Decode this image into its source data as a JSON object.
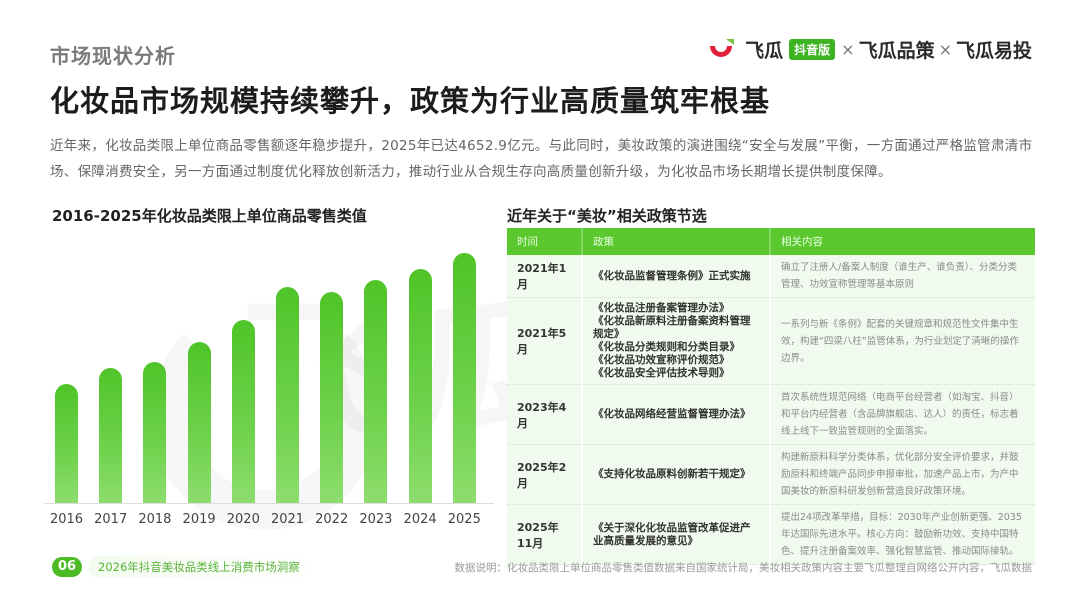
{
  "header": {
    "section_label": "市场现状分析",
    "title": "化妆品市场规模持续攀升，政策为行业高质量筑牢根基"
  },
  "brand": {
    "logo_icon": "feigua-logo-icon",
    "name1": "飞瓜",
    "badge": "抖音版",
    "separator": "×",
    "name2": "飞瓜品策",
    "name3": "飞瓜易投",
    "colors": {
      "logo_red": "#e0213a",
      "logo_green": "#7cc243",
      "badge_bg": "#3cb321"
    }
  },
  "intro": "近年来，化妆品类限上单位商品零售额逐年稳步提升，2025年已达4652.9亿元。与此同时，美妆政策的演进围绕“安全与发展”平衡，一方面通过严格监管肃清市场、保障消费安全，另一方面通过制度优化释放创新活力，推动行业从合规生存向高质量创新升级，为化妆品市场长期增长提供制度保障。",
  "chart_title": "2016-2025年化妆品类限上单位商品零售类值",
  "chart_data": {
    "type": "bar",
    "title": "2016-2025年化妆品类限上单位商品零售类值",
    "categories": [
      "2016",
      "2017",
      "2018",
      "2019",
      "2020",
      "2021",
      "2022",
      "2023",
      "2024",
      "2025"
    ],
    "values": [
      2222,
      2514,
      2619,
      2992,
      3400,
      4026,
      3936,
      4142,
      4357,
      4652.9
    ],
    "unit": "亿元",
    "xlabel": "",
    "ylabel": "",
    "ylim": [
      0,
      4700
    ],
    "grid": false,
    "legend": null,
    "bar_color": "#5ac82e"
  },
  "table": {
    "title": "近年关于“美妆”相关政策节选",
    "headers": [
      "时间",
      "政策",
      "相关内容"
    ],
    "rows": [
      {
        "date": "2021年1月",
        "policy": "《化妆品监督管理条例》正式实施",
        "content": "确立了注册人/备案人制度（谁生产、谁负责）、分类分类管理、功效宣称管理等基本原则"
      },
      {
        "date": "2021年5月",
        "policy": "《化妆品注册备案管理办法》\n《化妆品新原料注册备案资料管理规定》\n《化妆品分类规则和分类目录》\n《化妆品功效宣称评价规范》\n《化妆品安全评估技术导则》",
        "content": "一系列与新《条例》配套的关键规章和规范性文件集中生效，构建“四梁八柱”监管体系，为行业划定了清晰的操作边界。"
      },
      {
        "date": "2023年4月",
        "policy": "《化妆品网络经营监督管理办法》",
        "content": "首次系统性规范网络（电商平台经营者（如淘宝、抖音）和平台内经营者（含品牌旗舰店、达人）的责任，标志着线上线下一致监管规则的全面落实。"
      },
      {
        "date": "2025年2月",
        "policy": "《支持化妆品原料创新若干规定》",
        "content": "构建新原料科学分类体系，优化部分安全评价要求，并鼓励原料和终端产品同步申报审批，加速产品上市，为产中国美妆的新原料研发创新营造良好政策环境。"
      },
      {
        "date": "2025年11月",
        "policy": "《关于深化化妆品监管改革促进产业高质量发展的意见》",
        "content": "提出24项改革举措，目标：2030年产业创新更强、2035年达国际先进水平。核心方向：鼓励新功效、支持中国特色、提升注册备案效率、强化智慧监管、推动国际接轨。"
      }
    ]
  },
  "footer": {
    "page_number": "06",
    "report_title": "2026年抖音美妆品类线上消费市场洞察",
    "source_note": "数据说明：化妆品类限上单位商品零售类值数据来自国家统计局，美妆相关政策内容主要飞瓜整理自网络公开内容，飞瓜数据"
  },
  "watermark": "飞瓜数据"
}
